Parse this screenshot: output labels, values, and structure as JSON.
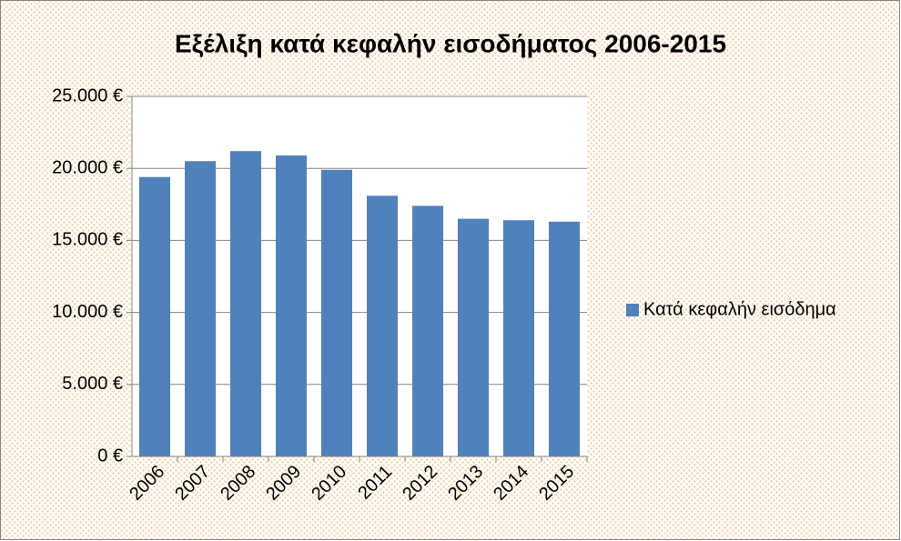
{
  "chart_data": {
    "type": "bar",
    "title": "Εξέλιξη κατά κεφαλήν εισοδήματος 2006-2015",
    "categories": [
      "2006",
      "2007",
      "2008",
      "2009",
      "2010",
      "2011",
      "2012",
      "2013",
      "2014",
      "2015"
    ],
    "series": [
      {
        "name": "Κατά κεφαλήν εισόδημα",
        "color": "#4f81bd",
        "values": [
          19400,
          20500,
          21200,
          20900,
          19900,
          18100,
          17400,
          16500,
          16400,
          16300
        ]
      }
    ],
    "ylim": [
      0,
      25000
    ],
    "yticks": [
      {
        "value": 0,
        "label": "0 €"
      },
      {
        "value": 5000,
        "label": "5.000 €"
      },
      {
        "value": 10000,
        "label": "10.000 €"
      },
      {
        "value": 15000,
        "label": "15.000 €"
      },
      {
        "value": 20000,
        "label": "20.000 €"
      },
      {
        "value": 25000,
        "label": "25.000 €"
      }
    ],
    "grid": true,
    "legend": "right"
  }
}
